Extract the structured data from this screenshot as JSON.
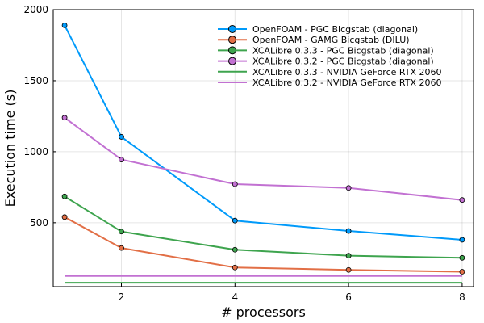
{
  "chart_data": {
    "type": "line",
    "xlabel": "# processors",
    "ylabel": "Execution time (s)",
    "xlim": [
      0.8,
      8.2
    ],
    "ylim": [
      50,
      2000
    ],
    "xticks": [
      2,
      4,
      6,
      8
    ],
    "yticks": [
      500,
      1000,
      1500,
      2000
    ],
    "grid": true,
    "legend_position": "top-right",
    "series": [
      {
        "name": "OpenFOAM - PGC Bicgstab (diagonal)",
        "color": "#009AFA",
        "markers": true,
        "x": [
          1,
          2,
          4,
          6,
          8
        ],
        "y": [
          1890,
          1105,
          515,
          442,
          380
        ]
      },
      {
        "name": "OpenFOAM - GAMG Bicgstab (DILU)",
        "color": "#E26F46",
        "markers": true,
        "x": [
          1,
          2,
          4,
          6,
          8
        ],
        "y": [
          540,
          322,
          185,
          168,
          155
        ]
      },
      {
        "name": "XCALibre 0.3.3 - PGC Bicgstab (diagonal)",
        "color": "#3EA44E",
        "markers": true,
        "x": [
          1,
          2,
          4,
          6,
          8
        ],
        "y": [
          685,
          438,
          310,
          268,
          253
        ]
      },
      {
        "name": "XCALibre 0.3.2 - PGC Bicgstab (diagonal)",
        "color": "#C271D2",
        "markers": true,
        "x": [
          1,
          2,
          4,
          6,
          8
        ],
        "y": [
          1240,
          945,
          772,
          745,
          660
        ]
      },
      {
        "name": "XCALibre 0.3.3 - NVIDIA GeForce RTX 2060",
        "color": "#3EA44E",
        "markers": false,
        "x": [
          1,
          8
        ],
        "y": [
          78,
          78
        ]
      },
      {
        "name": "XCALibre 0.3.2 - NVIDIA GeForce RTX 2060",
        "color": "#C271D2",
        "markers": false,
        "x": [
          1,
          8
        ],
        "y": [
          125,
          125
        ]
      }
    ]
  }
}
